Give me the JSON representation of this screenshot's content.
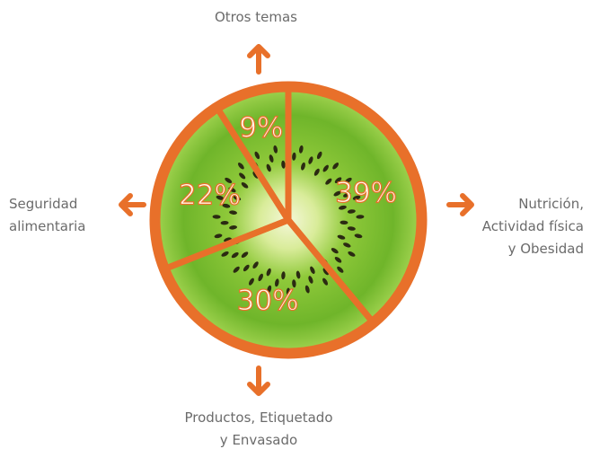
{
  "chart_data": {
    "type": "pie",
    "categories": [
      "Nutrición,\nActividad física\ny Obesidad",
      "Productos, Etiquetado\ny Envasado",
      "Seguridad\nalimentaria",
      "Otros temas"
    ],
    "values": [
      39,
      30,
      22,
      9
    ],
    "value_labels": [
      "39%",
      "30%",
      "22%",
      "9%"
    ],
    "color": "#e8702a"
  }
}
